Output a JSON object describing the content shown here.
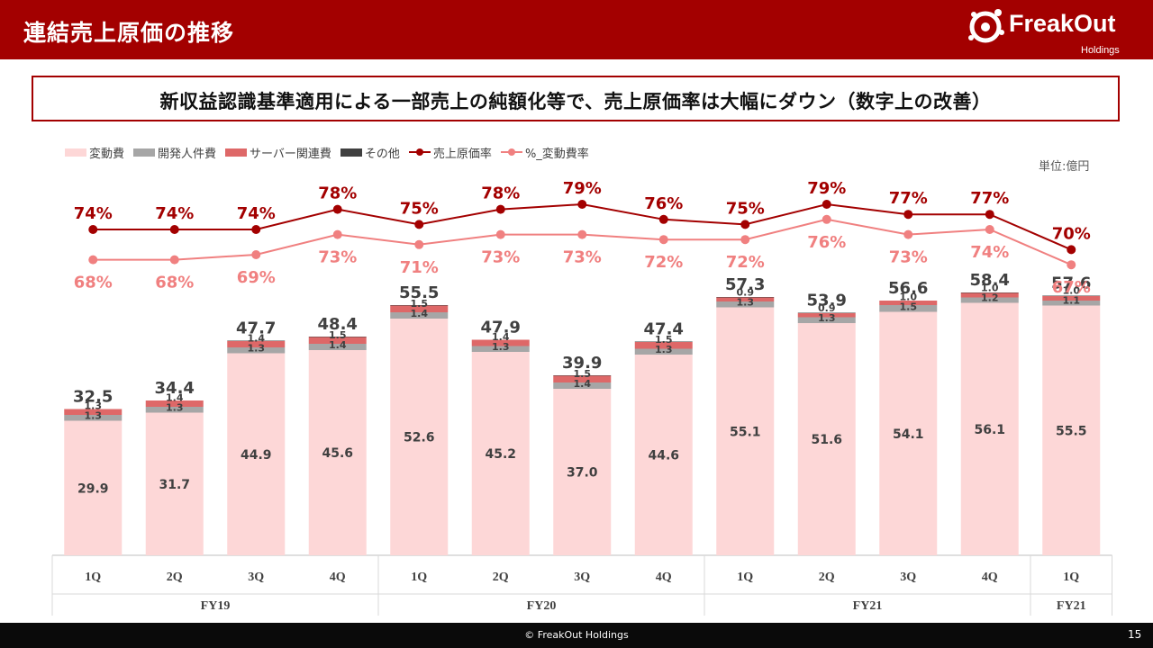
{
  "header": {
    "title": "連結売上原価の推移",
    "logo_text": "FreakOut",
    "logo_sub": "Holdings"
  },
  "headline": "新収益認識基準適用による一部売上の純額化等で、売上原価率は大幅にダウン（数字上の改善）",
  "unit": "単位:億円",
  "footer": {
    "copyright": "© FreakOut Holdings",
    "page": "15"
  },
  "colors": {
    "header": "#a30000",
    "variable": "#fdd7d7",
    "dev_personnel": "#a6a6a6",
    "server": "#de6868",
    "other": "#404040",
    "cost_ratio": "#a30000",
    "variable_ratio": "#f08080"
  },
  "chart_data": {
    "type": "bar",
    "stacked": true,
    "categories": [
      "1Q",
      "2Q",
      "3Q",
      "4Q",
      "1Q",
      "2Q",
      "3Q",
      "4Q",
      "1Q",
      "2Q",
      "3Q",
      "4Q",
      "1Q"
    ],
    "groups": [
      {
        "label": "FY19",
        "count": 4
      },
      {
        "label": "FY20",
        "count": 4
      },
      {
        "label": "FY21",
        "count": 4
      },
      {
        "label": "FY21",
        "count": 1
      }
    ],
    "series": [
      {
        "name": "変動費",
        "key": "variable",
        "values": [
          29.9,
          31.7,
          44.9,
          45.6,
          52.6,
          45.2,
          37.0,
          44.6,
          55.1,
          51.6,
          54.1,
          56.1,
          55.5
        ]
      },
      {
        "name": "開発人件費",
        "key": "dev_personnel",
        "values": [
          1.3,
          1.3,
          1.3,
          1.4,
          1.4,
          1.3,
          1.4,
          1.3,
          1.3,
          1.3,
          1.5,
          1.2,
          1.1
        ]
      },
      {
        "name": "サーバー関連費",
        "key": "server",
        "values": [
          1.3,
          1.4,
          1.4,
          1.5,
          1.5,
          1.4,
          1.5,
          1.5,
          0.9,
          0.9,
          1.0,
          1.0,
          1.0
        ]
      },
      {
        "name": "その他",
        "key": "other",
        "values": [
          0.0,
          0.0,
          0.1,
          0.1,
          0.1,
          0.0,
          0.1,
          0.1,
          0.1,
          0.1,
          0.0,
          0.1,
          0.1
        ]
      }
    ],
    "totals": [
      "32.5",
      "34.4",
      "47.7",
      "48.4",
      "55.5",
      "47.9",
      "39.9",
      "47.4",
      "57.3",
      "53.9",
      "56.6",
      "58.4",
      "57.6"
    ],
    "lines": [
      {
        "name": "売上原価率",
        "key": "cost_ratio",
        "values": [
          74,
          74,
          74,
          78,
          75,
          78,
          79,
          76,
          75,
          79,
          77,
          77,
          70
        ]
      },
      {
        "name": "%_変動費率",
        "key": "variable_ratio",
        "values": [
          68,
          68,
          69,
          73,
          71,
          73,
          73,
          72,
          72,
          76,
          73,
          74,
          67
        ]
      }
    ],
    "ylim": [
      0,
      60
    ],
    "grid": false,
    "legend": "top-left"
  }
}
